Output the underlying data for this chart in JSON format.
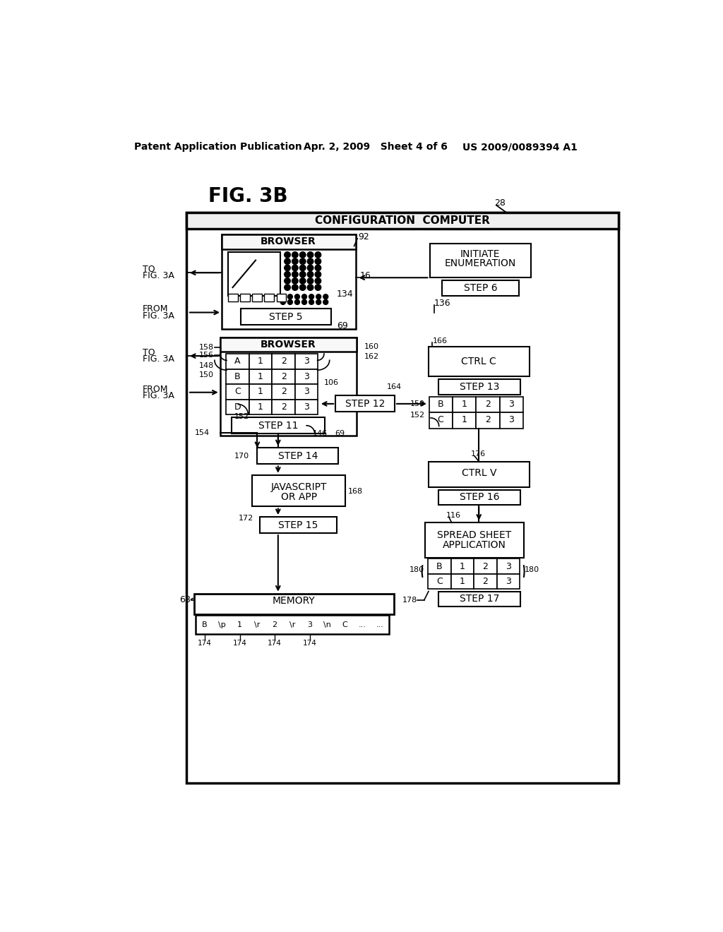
{
  "bg_color": "#ffffff",
  "header_left": "Patent Application Publication",
  "header_mid": "Apr. 2, 2009   Sheet 4 of 6",
  "header_right": "US 2009/0089394 A1"
}
